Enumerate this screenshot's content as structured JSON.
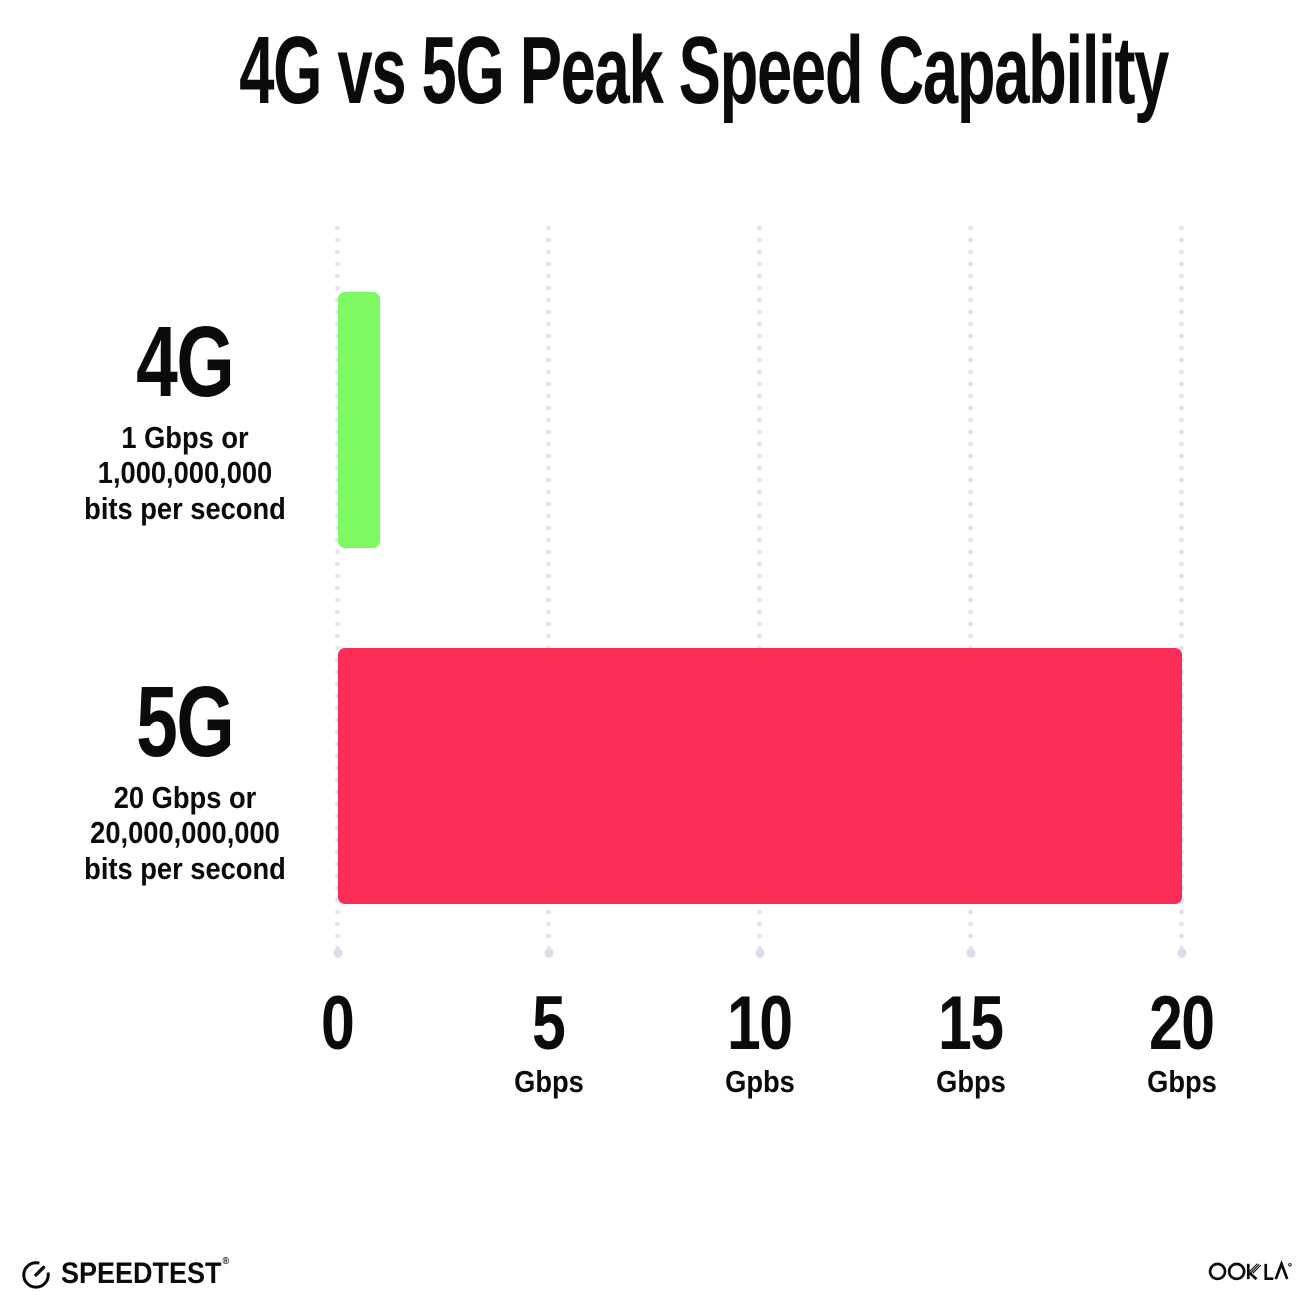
{
  "title": "4G vs 5G Peak Speed Capability",
  "chart_data": {
    "type": "bar",
    "orientation": "horizontal",
    "title": "4G vs 5G Peak Speed Capability",
    "legend": "none",
    "grid": "dotted-vertical",
    "x_axis": {
      "min": 0,
      "max": 20,
      "ticks": [
        {
          "label": "0",
          "unit": ""
        },
        {
          "label": "5",
          "unit": "Gbps"
        },
        {
          "label": "10",
          "unit": "Gpbs"
        },
        {
          "label": "15",
          "unit": "Gbps"
        },
        {
          "label": "20",
          "unit": "Gbps"
        }
      ]
    },
    "bars": [
      {
        "category": "4G",
        "value_gbps": 1,
        "color": "#7DFA63",
        "description_lines": [
          "1 Gbps or",
          "1,000,000,000",
          "bits per second"
        ]
      },
      {
        "category": "5G",
        "value_gbps": 20,
        "color": "#FD2E56",
        "description_lines": [
          "20 Gbps or",
          "20,000,000,000",
          "bits per second"
        ]
      }
    ]
  },
  "footer": {
    "speedtest_wordmark": "SPEEDTEST",
    "speedtest_trademark": "®",
    "speedtest_icon": "speedometer-gauge-icon",
    "ookla_wordmark": "OOKLA",
    "ookla_trademark": "®"
  },
  "colors": {
    "background": "#FFFFFF",
    "text": "#0B0B0B",
    "grid_dots": "#E2E4F0",
    "bar_4g": "#7DFA63",
    "bar_5g": "#FD2E56"
  }
}
